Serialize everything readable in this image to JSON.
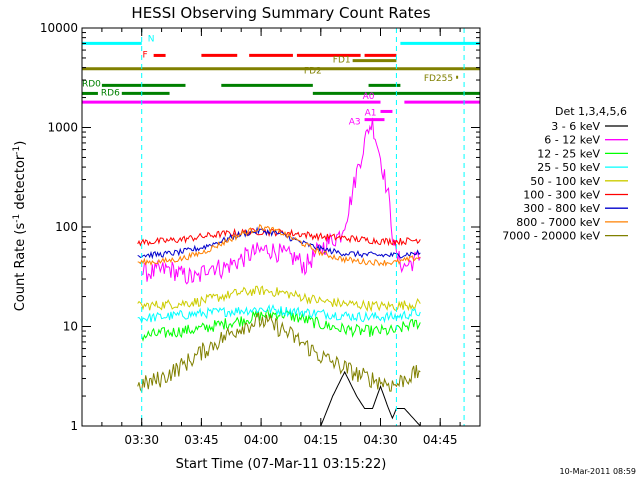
{
  "chart_data": {
    "type": "line",
    "title": "HESSI Observing Summary Count Rates",
    "xlabel": "Start Time (07-Mar-11 03:15:22)",
    "ylabel": "Count Rate (s",
    "ylabel_sup1": "-1",
    "ylabel_mid": " detector",
    "ylabel_sup2": "-1",
    "ylabel_end": ")",
    "yscale": "log",
    "ylim": [
      1,
      10000
    ],
    "xlim": [
      "03:15",
      "04:55"
    ],
    "x_ticks": [
      "03:30",
      "03:45",
      "04:00",
      "04:15",
      "04:30",
      "04:45"
    ],
    "y_ticks": [
      "1",
      "10",
      "100",
      "1000",
      "10000"
    ],
    "legend_title": "Det 1,3,4,5,6",
    "legend_position": "right",
    "timestamp": "10-Mar-2011 08:59",
    "series": [
      {
        "name": "3 - 6 keV",
        "color": "#000000",
        "x": [
          "03:29",
          "03:33",
          "03:38",
          "03:43",
          "03:47",
          "03:53",
          "04:00",
          "04:07",
          "04:12",
          "04:15",
          "04:18",
          "04:21",
          "04:24",
          "04:26",
          "04:28",
          "04:30",
          "04:32",
          "04:33",
          "04:34",
          "04:36",
          "04:40"
        ],
        "y": [
          1,
          1,
          1,
          1,
          1,
          1,
          1,
          1,
          1,
          1,
          2,
          3.5,
          2,
          1.5,
          1.5,
          2.5,
          1.5,
          1.2,
          1.5,
          1.5,
          1
        ]
      },
      {
        "name": "6 - 12 keV",
        "color": "#ff00ff",
        "x": [
          "03:30",
          "03:33",
          "03:37",
          "03:40",
          "03:44",
          "03:47",
          "03:50",
          "03:54",
          "03:58",
          "04:02",
          "04:06",
          "04:09",
          "04:11",
          "04:14",
          "04:16",
          "04:18",
          "04:20",
          "04:22",
          "04:24",
          "04:26",
          "04:27",
          "04:28",
          "04:30",
          "04:32",
          "04:33",
          "04:34",
          "04:36",
          "04:40"
        ],
        "y": [
          35,
          35,
          38,
          33,
          30,
          42,
          38,
          45,
          55,
          60,
          52,
          48,
          40,
          55,
          65,
          75,
          85,
          150,
          350,
          700,
          1000,
          1100,
          500,
          200,
          90,
          50,
          40,
          50
        ]
      },
      {
        "name": "12 - 25 keV",
        "color": "#00ff00",
        "x": [
          "03:30",
          "03:35",
          "03:40",
          "03:45",
          "03:50",
          "03:55",
          "04:00",
          "04:05",
          "04:10",
          "04:15",
          "04:20",
          "04:25",
          "04:30",
          "04:33",
          "04:34",
          "04:36",
          "04:40"
        ],
        "y": [
          8,
          8.5,
          9,
          9.5,
          10.5,
          11.5,
          13,
          13.5,
          12,
          10.5,
          9.5,
          9,
          9,
          9,
          9,
          10,
          11
        ]
      },
      {
        "name": "25 - 50 keV",
        "color": "#00ffff",
        "x": [
          "03:29",
          "03:35",
          "03:40",
          "03:45",
          "03:50",
          "03:55",
          "04:00",
          "04:05",
          "04:10",
          "04:15",
          "04:20",
          "04:25",
          "04:30",
          "04:33",
          "04:34",
          "04:36",
          "04:40"
        ],
        "y": [
          12,
          12.5,
          13,
          13.5,
          14,
          14.5,
          15,
          14.5,
          14,
          13.5,
          13,
          12.5,
          12.5,
          12.5,
          12.5,
          13,
          14
        ]
      },
      {
        "name": "50 - 100 keV",
        "color": "#cccc00",
        "x": [
          "03:29",
          "03:35",
          "03:40",
          "03:45",
          "03:50",
          "03:55",
          "04:00",
          "04:05",
          "04:10",
          "04:15",
          "04:20",
          "04:25",
          "04:30",
          "04:33",
          "04:34",
          "04:36",
          "04:40"
        ],
        "y": [
          16,
          16.5,
          17,
          18,
          20,
          22,
          23,
          22,
          20,
          18,
          17,
          16.5,
          16,
          16,
          16,
          16.5,
          17
        ]
      },
      {
        "name": "100 - 300 keV",
        "color": "#ff0000",
        "x": [
          "03:29",
          "03:35",
          "03:40",
          "03:45",
          "03:50",
          "03:55",
          "04:00",
          "04:05",
          "04:10",
          "04:15",
          "04:20",
          "04:25",
          "04:30",
          "04:33",
          "04:34",
          "04:36",
          "04:40"
        ],
        "y": [
          70,
          72,
          75,
          80,
          85,
          88,
          90,
          88,
          85,
          80,
          78,
          75,
          72,
          72,
          72,
          72,
          75
        ]
      },
      {
        "name": "300 - 800 keV",
        "color": "#0000cc",
        "x": [
          "03:29",
          "03:35",
          "03:40",
          "03:45",
          "03:50",
          "03:55",
          "04:00",
          "04:05",
          "04:10",
          "04:15",
          "04:20",
          "04:25",
          "04:30",
          "04:33",
          "04:34",
          "04:36",
          "04:40"
        ],
        "y": [
          52,
          53,
          56,
          62,
          72,
          85,
          92,
          85,
          70,
          60,
          55,
          53,
          52,
          52,
          52,
          53,
          55
        ]
      },
      {
        "name": "800 - 7000 keV",
        "color": "#ff8000",
        "x": [
          "03:29",
          "03:35",
          "03:40",
          "03:45",
          "03:50",
          "03:55",
          "04:00",
          "04:05",
          "04:10",
          "04:15",
          "04:20",
          "04:25",
          "04:30",
          "04:33",
          "04:34",
          "04:36",
          "04:40"
        ],
        "y": [
          44,
          45,
          48,
          55,
          68,
          85,
          100,
          88,
          70,
          55,
          48,
          45,
          44,
          44,
          44,
          46,
          50
        ]
      },
      {
        "name": "7000 - 20000 keV",
        "color": "#808000",
        "x": [
          "03:29",
          "03:35",
          "03:40",
          "03:45",
          "03:50",
          "03:55",
          "04:00",
          "04:05",
          "04:10",
          "04:15",
          "04:20",
          "04:25",
          "04:30",
          "04:33",
          "04:34",
          "04:36",
          "04:40"
        ],
        "y": [
          2.5,
          3,
          4,
          5.5,
          7.5,
          10,
          11.5,
          9.5,
          7,
          5,
          4,
          3.2,
          2.8,
          2.6,
          2.6,
          3,
          3.5
        ]
      }
    ],
    "flags": [
      {
        "label": "N",
        "color": "#00ffff",
        "row_y": 7000,
        "segments": [
          [
            "03:15",
            "03:30"
          ],
          [
            "04:35",
            "04:55"
          ]
        ]
      },
      {
        "label": "F",
        "color": "#ff0000",
        "row_y": 5300,
        "segments": [
          [
            "03:33",
            "03:36"
          ],
          [
            "03:45",
            "03:54"
          ],
          [
            "03:57",
            "04:08"
          ],
          [
            "04:09",
            "04:25"
          ],
          [
            "04:26",
            "04:34"
          ]
        ]
      },
      {
        "label": "FD1",
        "color": "#808000",
        "row_y": 4700,
        "segments": [
          [
            "04:23",
            "04:34"
          ]
        ]
      },
      {
        "label": "FD2",
        "color": "#808000",
        "row_y": 3900,
        "segments": [
          [
            "03:15",
            "04:55"
          ]
        ]
      },
      {
        "label": "FD255",
        "color": "#808000",
        "row_y": 3200,
        "segments": [
          [
            "04:49",
            "04:49.5"
          ]
        ]
      },
      {
        "label": "RD0",
        "color": "#008000",
        "row_y": 2650,
        "segments": [
          [
            "03:20",
            "03:41"
          ],
          [
            "03:50",
            "04:13"
          ],
          [
            "04:27",
            "04:35"
          ]
        ]
      },
      {
        "label": "RD6",
        "color": "#008000",
        "row_y": 2200,
        "segments": [
          [
            "03:15",
            "03:19"
          ],
          [
            "03:25",
            "03:37"
          ],
          [
            "04:13",
            "04:55"
          ]
        ]
      },
      {
        "label": "A0",
        "color": "#ff00ff",
        "row_y": 1800,
        "segments": [
          [
            "03:15",
            "04:30"
          ],
          [
            "04:36",
            "04:55"
          ]
        ]
      },
      {
        "label": "A1",
        "color": "#ff00ff",
        "row_y": 1450,
        "segments": [
          [
            "04:30",
            "04:33"
          ]
        ]
      },
      {
        "label": "A3",
        "color": "#ff00ff",
        "row_y": 1200,
        "segments": [
          [
            "04:26",
            "04:31"
          ]
        ]
      }
    ],
    "vertical_markers": [
      "03:30",
      "04:34",
      "04:51"
    ]
  }
}
